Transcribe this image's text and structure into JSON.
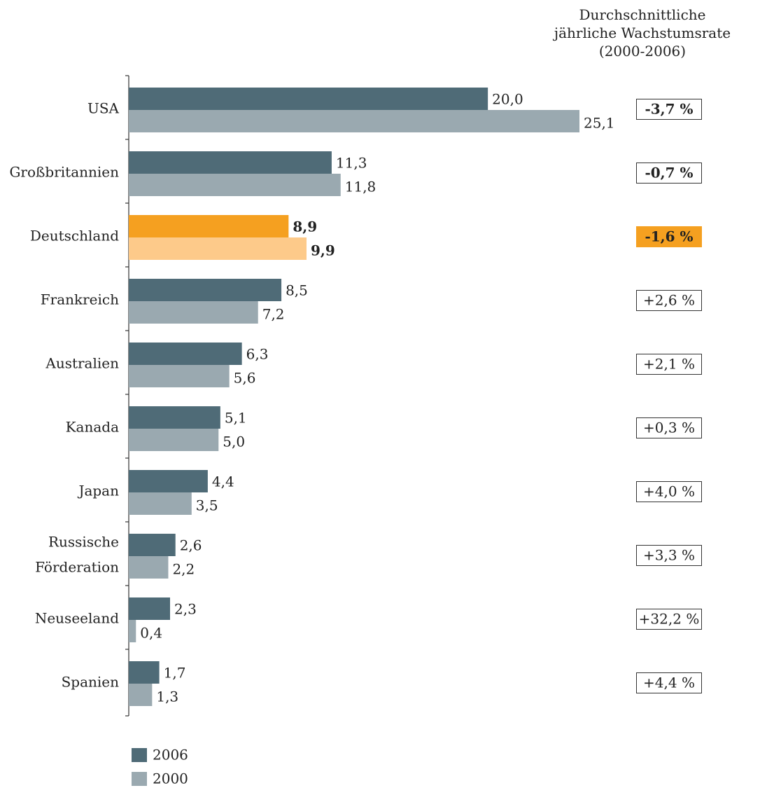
{
  "chart_data": {
    "type": "bar",
    "orientation": "horizontal",
    "categories": [
      "USA",
      "Großbritannien",
      "Deutschland",
      "Frankreich",
      "Australien",
      "Kanada",
      "Japan",
      "Russische Förderation",
      "Neuseeland",
      "Spanien"
    ],
    "category_lines": [
      [
        "USA"
      ],
      [
        "Großbritannien"
      ],
      [
        "Deutschland"
      ],
      [
        "Frankreich"
      ],
      [
        "Australien"
      ],
      [
        "Kanada"
      ],
      [
        "Japan"
      ],
      [
        "Russische",
        "Förderation"
      ],
      [
        "Neuseeland"
      ],
      [
        "Spanien"
      ]
    ],
    "series": [
      {
        "name": "2006",
        "values": [
          20.0,
          11.3,
          8.9,
          8.5,
          6.3,
          5.1,
          4.4,
          2.6,
          2.3,
          1.7
        ],
        "labels": [
          "20,0",
          "11,3",
          "8,9",
          "8,5",
          "6,3",
          "5,1",
          "4,4",
          "2,6",
          "2,3",
          "1,7"
        ],
        "color": "#4f6b77"
      },
      {
        "name": "2000",
        "values": [
          25.1,
          11.8,
          9.9,
          7.2,
          5.6,
          5.0,
          3.5,
          2.2,
          0.4,
          1.3
        ],
        "labels": [
          "25,1",
          "11,8",
          "9,9",
          "7,2",
          "5,6",
          "5,0",
          "3,5",
          "2,2",
          "0,4",
          "1,3"
        ],
        "color": "#9aa9b0"
      }
    ],
    "highlight": {
      "category": "Deutschland",
      "color_2006": "#f5a020",
      "color_2000": "#fdca8a"
    },
    "growth_header": [
      "Durchschnittliche",
      "jährliche Wachstumsrate",
      "(2000-2006)"
    ],
    "growth_rates": [
      "-3,7 %",
      "-0,7 %",
      "-1,6 %",
      "+2,6 %",
      "+2,1 %",
      "+0,3 %",
      "+4,0 %",
      "+3,3 %",
      "+32,2 %",
      "+4,4 %"
    ],
    "growth_bold": [
      true,
      true,
      true,
      false,
      false,
      false,
      false,
      false,
      false,
      false
    ],
    "legend": [
      "2006",
      "2000"
    ],
    "legend_position": "bottom-left",
    "xlim": [
      0,
      25.1
    ],
    "grid": false
  }
}
